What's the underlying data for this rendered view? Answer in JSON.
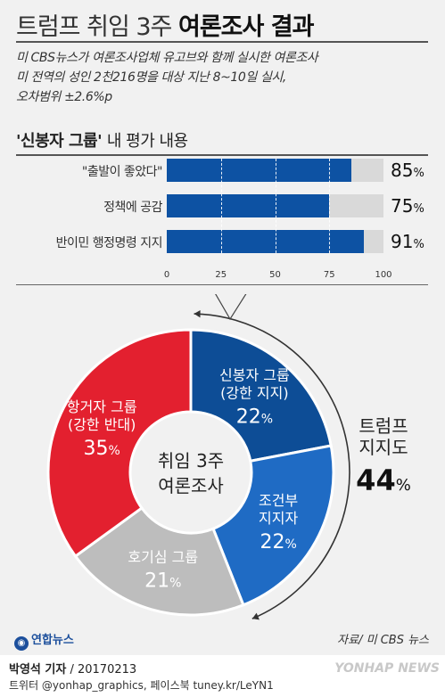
{
  "header": {
    "title_light": "트럼프 취임 3주",
    "title_bold": "여론조사 결과",
    "subtitle_lines": [
      "미 CBS뉴스가 여론조사업체 유고브와 함께 실시한 여론조사",
      "미 전역의 성인 2천216명을 대상 지난 8~10일 실시,",
      "오차범위 ±2.6%p"
    ]
  },
  "section": {
    "title_quoted": "'신봉자 그룹'",
    "title_rest": "내 평가 내용"
  },
  "chart_data": [
    {
      "type": "bar",
      "orientation": "horizontal",
      "categories": [
        "\"출발이 좋았다\"",
        "정책에 공감",
        "반이민 행정명령 지지"
      ],
      "values": [
        85,
        75,
        91
      ],
      "value_labels": [
        "85%",
        "75%",
        "91%"
      ],
      "xlim": [
        0,
        100
      ],
      "xticks": [
        "0",
        "25",
        "50",
        "75",
        "100"
      ],
      "colors": {
        "fill": "#0d52a3",
        "track": "#d9d9d9"
      }
    },
    {
      "type": "pie",
      "center_label": [
        "취임 3주",
        "여론조사"
      ],
      "slices": [
        {
          "lines": [
            "신봉자 그룹",
            "(강한 지지)"
          ],
          "value": 22,
          "pct": "22%",
          "color": "#0d4d96"
        },
        {
          "lines": [
            "조건부",
            "지지자"
          ],
          "value": 22,
          "pct": "22%",
          "color": "#1f6bc4"
        },
        {
          "lines": [
            "호기심 그룹"
          ],
          "value": 21,
          "pct": "21%",
          "color": "#bdbdbd"
        },
        {
          "lines": [
            "항거자 그룹",
            "(강한 반대)"
          ],
          "value": 35,
          "pct": "35%",
          "color": "#e3202f"
        }
      ],
      "support_label": [
        "트럼프",
        "지지도"
      ],
      "support_value": "44%"
    }
  ],
  "footer": {
    "logo_text": "연합뉴스",
    "source": "자료/ 미 CBS 뉴스",
    "reporter": "박영석 기자",
    "date": "/ 20170213",
    "social": "트위터 @yonhap_graphics, 페이스북 tuney.kr/LeYN1",
    "watermark": "YONHAP NEWS"
  }
}
